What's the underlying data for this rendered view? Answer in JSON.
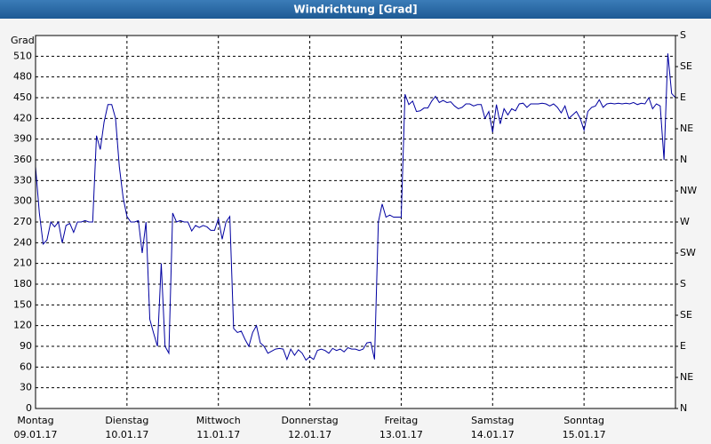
{
  "chart_data": {
    "type": "line",
    "title": "Windrichtung [Grad]",
    "y_label": "Grad",
    "x": [
      0,
      1,
      2,
      3,
      4,
      5,
      6,
      7,
      8,
      9,
      10,
      11,
      12,
      13,
      14,
      15,
      16,
      17,
      18,
      19,
      20,
      21,
      22,
      23,
      24,
      25,
      26,
      27,
      28,
      29,
      30,
      31,
      32,
      33,
      34,
      35,
      36,
      37,
      38,
      39,
      40,
      41,
      42,
      43,
      44,
      45,
      46,
      47,
      48,
      49,
      50,
      51,
      52,
      53,
      54,
      55,
      56,
      57,
      58,
      59,
      60,
      61,
      62,
      63,
      64,
      65,
      66,
      67,
      68,
      69,
      70,
      71,
      72,
      73,
      74,
      75,
      76,
      77,
      78,
      79,
      80,
      81,
      82,
      83,
      84,
      85,
      86,
      87,
      88,
      89,
      90,
      91,
      92,
      93,
      94,
      95,
      96,
      97,
      98,
      99,
      100,
      101,
      102,
      103,
      104,
      105,
      106,
      107,
      108,
      109,
      110,
      111,
      112,
      113,
      114,
      115,
      116,
      117,
      118,
      119,
      120,
      121,
      122,
      123,
      124,
      125,
      126,
      127,
      128,
      129,
      130,
      131,
      132,
      133,
      134,
      135,
      136,
      137,
      138,
      139,
      140,
      141,
      142,
      143,
      144,
      145,
      146,
      147,
      148,
      149,
      150,
      151,
      152,
      153,
      154,
      155,
      156,
      157,
      158,
      159,
      160,
      161,
      162,
      163,
      164,
      165,
      166,
      167,
      168
    ],
    "series": [
      {
        "name": "Windrichtung",
        "color": "#0000a0",
        "values": [
          350,
          283,
          238,
          244,
          270,
          263,
          270,
          240,
          265,
          268,
          255,
          270,
          270,
          272,
          270,
          270,
          395,
          375,
          415,
          440,
          440,
          420,
          350,
          305,
          278,
          270,
          270,
          272,
          225,
          270,
          129,
          109,
          90,
          210,
          90,
          80,
          283,
          270,
          272,
          270,
          270,
          257,
          265,
          262,
          265,
          263,
          258,
          258,
          275,
          245,
          270,
          278,
          116,
          110,
          112,
          100,
          90,
          110,
          120,
          95,
          90,
          80,
          83,
          86,
          87,
          86,
          71,
          86,
          77,
          85,
          80,
          70,
          75,
          71,
          84,
          86,
          84,
          80,
          87,
          84,
          86,
          82,
          88,
          86,
          86,
          84,
          86,
          95,
          96,
          71,
          270,
          296,
          277,
          280,
          277,
          277,
          277,
          455,
          440,
          445,
          430,
          431,
          435,
          435,
          445,
          452,
          443,
          446,
          443,
          444,
          438,
          434,
          436,
          441,
          441,
          438,
          440,
          440,
          420,
          430,
          400,
          440,
          412,
          434,
          425,
          434,
          431,
          441,
          442,
          436,
          441,
          441,
          441,
          442,
          441,
          438,
          441,
          436,
          428,
          438,
          420,
          425,
          430,
          420,
          403,
          430,
          436,
          438,
          447,
          436,
          441,
          442,
          441,
          442,
          441,
          442,
          441,
          443,
          440,
          442,
          441,
          450,
          434,
          441,
          438,
          360,
          514,
          456,
          450
        ]
      }
    ],
    "xlim": [
      0,
      168
    ],
    "xticks": [
      {
        "value": 0,
        "label": [
          "Montag",
          "09.01.17"
        ]
      },
      {
        "value": 24,
        "label": [
          "Dienstag",
          "10.01.17"
        ]
      },
      {
        "value": 48,
        "label": [
          "Mittwoch",
          "11.01.17"
        ]
      },
      {
        "value": 72,
        "label": [
          "Donnerstag",
          "12.01.17"
        ]
      },
      {
        "value": 96,
        "label": [
          "Freitag",
          "13.01.17"
        ]
      },
      {
        "value": 120,
        "label": [
          "Samstag",
          "14.01.17"
        ]
      },
      {
        "value": 144,
        "label": [
          "Sonntag",
          "15.01.17"
        ]
      }
    ],
    "ylim": [
      0,
      540
    ],
    "yticks": [
      0,
      30,
      60,
      90,
      120,
      150,
      180,
      210,
      240,
      270,
      300,
      330,
      360,
      390,
      420,
      450,
      480,
      510
    ],
    "y2lim": [
      0,
      540
    ],
    "y2ticks": [
      {
        "value": 0,
        "label": "N"
      },
      {
        "value": 45,
        "label": "NE"
      },
      {
        "value": 90,
        "label": "E"
      },
      {
        "value": 135,
        "label": "SE"
      },
      {
        "value": 180,
        "label": "S"
      },
      {
        "value": 225,
        "label": "SW"
      },
      {
        "value": 270,
        "label": "W"
      },
      {
        "value": 315,
        "label": "NW"
      },
      {
        "value": 360,
        "label": "N"
      },
      {
        "value": 405,
        "label": "NE"
      },
      {
        "value": 450,
        "label": "E"
      },
      {
        "value": 495,
        "label": "SE"
      },
      {
        "value": 540,
        "label": "S"
      }
    ],
    "grid": true
  }
}
